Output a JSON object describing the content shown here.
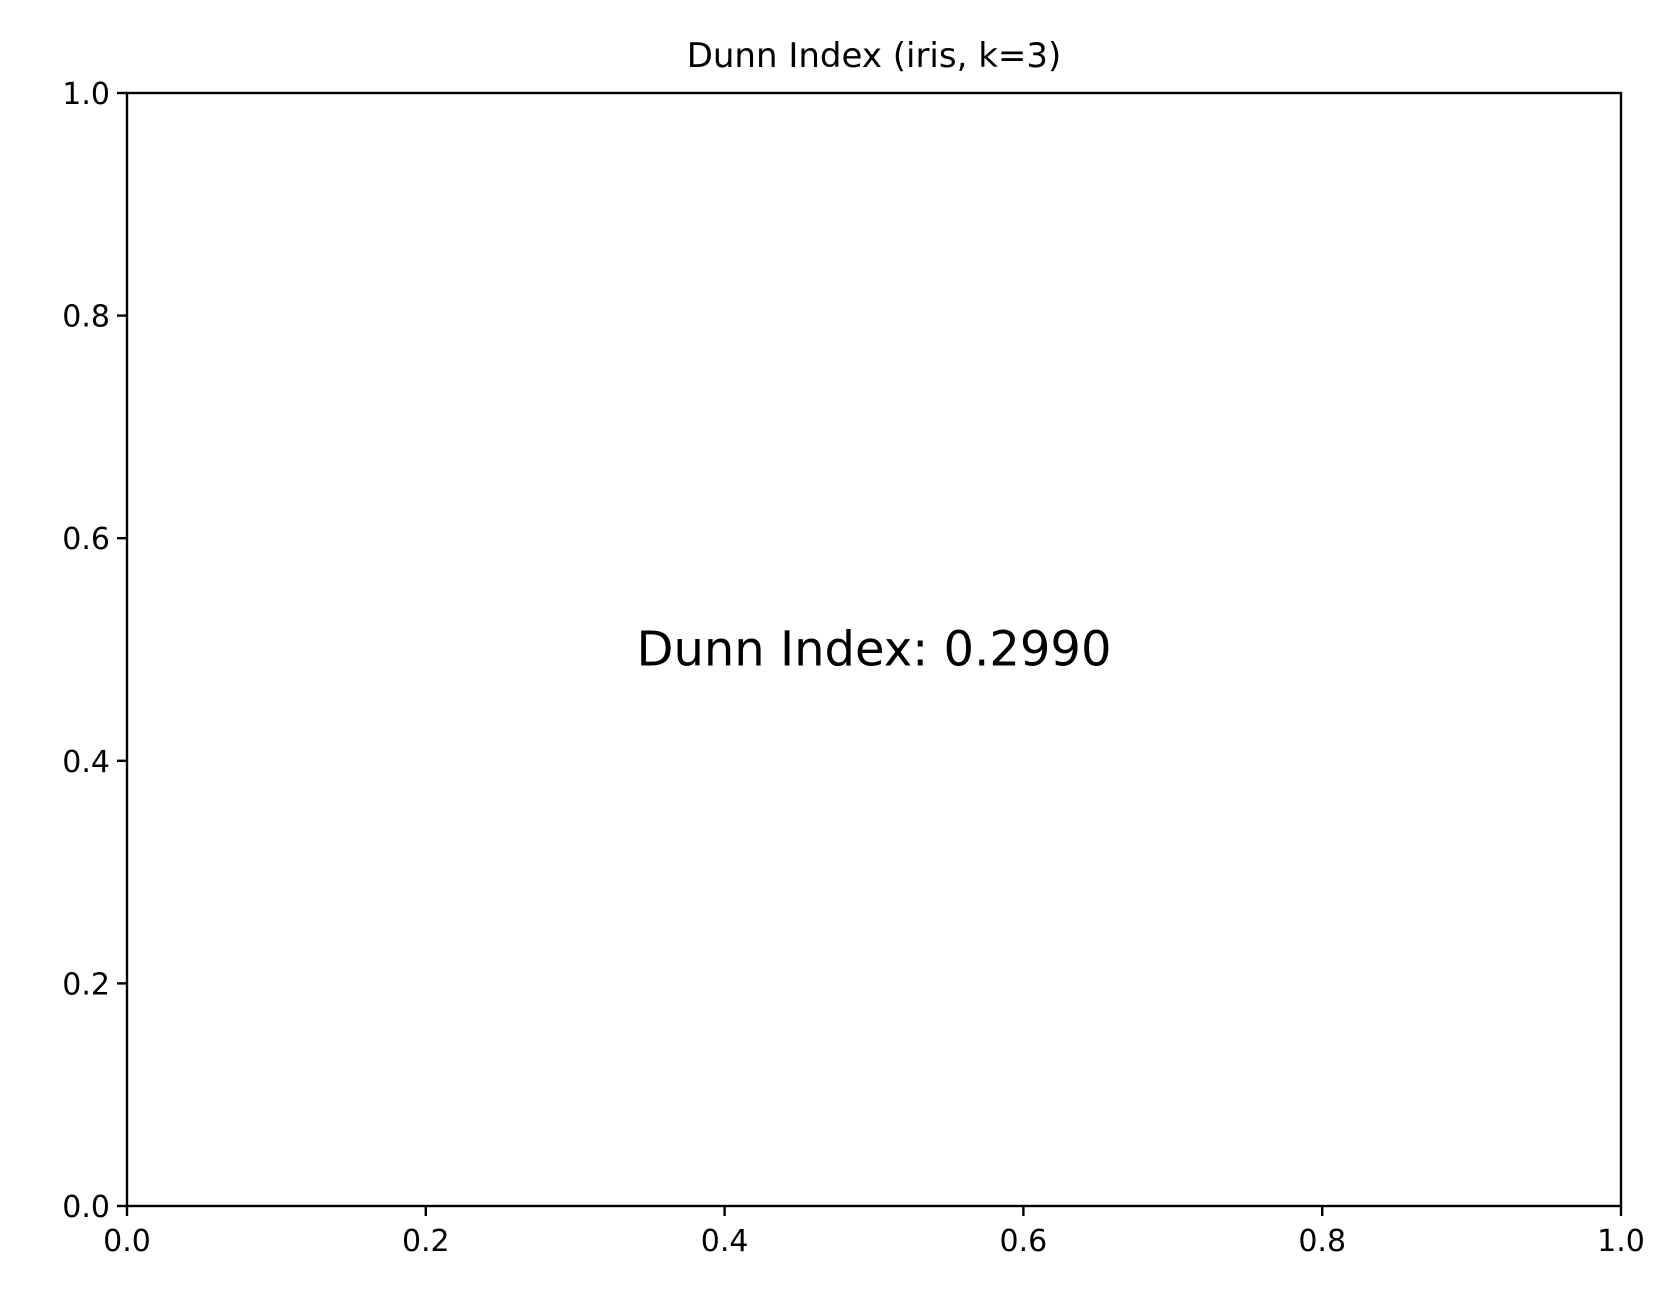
{
  "chart_data": {
    "type": "scatter",
    "title": "Dunn Index (iris, k=3)",
    "xlabel": "",
    "ylabel": "",
    "xlim": [
      0.0,
      1.0
    ],
    "ylim": [
      0.0,
      1.0
    ],
    "xticks": [
      0.0,
      0.2,
      0.4,
      0.6,
      0.8,
      1.0
    ],
    "yticks": [
      0.0,
      0.2,
      0.4,
      0.6,
      0.8,
      1.0
    ],
    "xtick_labels": [
      "0.0",
      "0.2",
      "0.4",
      "0.6",
      "0.8",
      "1.0"
    ],
    "ytick_labels": [
      "0.0",
      "0.2",
      "0.4",
      "0.6",
      "0.8",
      "1.0"
    ],
    "grid": false,
    "series": [],
    "annotations": [
      {
        "text": "Dunn Index: 0.2990",
        "x": 0.5,
        "y": 0.5,
        "ha": "center",
        "va": "center"
      }
    ]
  }
}
